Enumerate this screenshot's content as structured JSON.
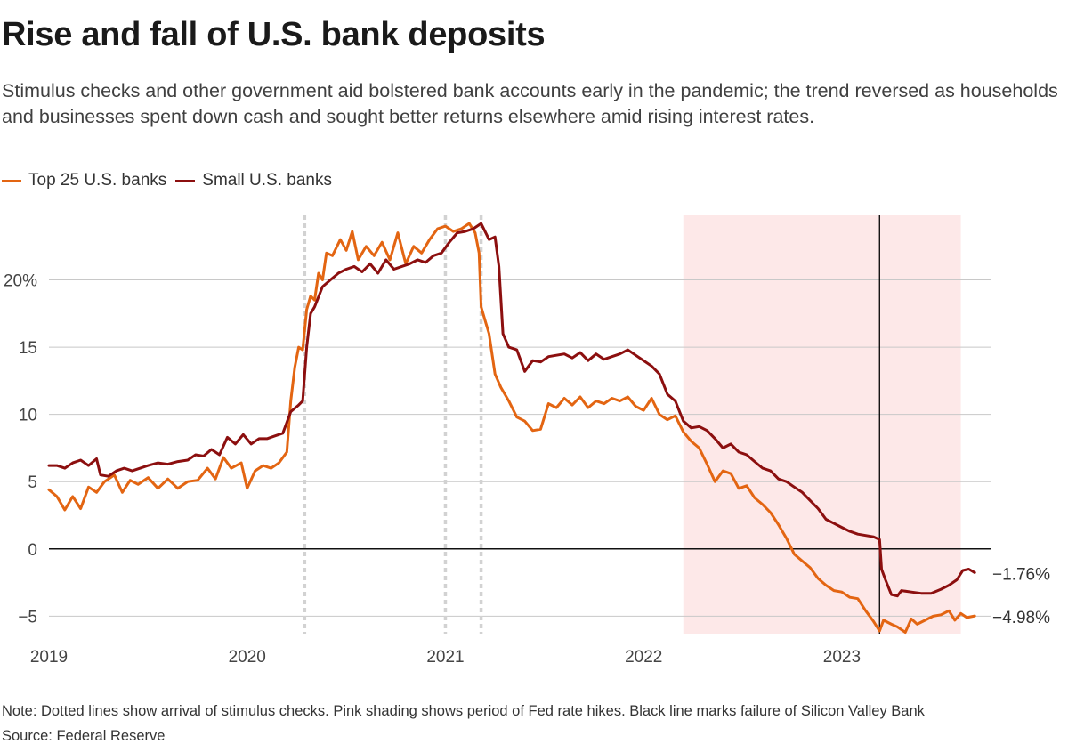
{
  "title": "Rise and fall of U.S. bank deposits",
  "subtitle": "Stimulus checks and other government aid bolstered bank accounts early in the pandemic; the trend reversed as households and businesses spent down cash and sought better returns elsewhere amid rising interest rates.",
  "note": "Note: Dotted lines show arrival of stimulus checks. Pink shading shows period of Fed rate hikes. Black line marks failure of Silicon Valley Bank",
  "source": "Source: Federal Reserve",
  "colors": {
    "top25": "#e36512",
    "small": "#8c0f0f",
    "shade": "#fde8e8",
    "grid": "#c8c8c8",
    "marker": "#000000",
    "stimulus": "#d2d2d2"
  },
  "chart_data": {
    "type": "line",
    "x_unit": "year",
    "xlim": [
      2019.0,
      2023.75
    ],
    "ylim": [
      -6.3,
      24.8
    ],
    "grid": true,
    "legend_position": "top-left",
    "x_ticks": [
      {
        "value": 2019,
        "label": "2019"
      },
      {
        "value": 2020,
        "label": "2020"
      },
      {
        "value": 2021,
        "label": "2021"
      },
      {
        "value": 2022,
        "label": "2022"
      },
      {
        "value": 2023,
        "label": "2023"
      }
    ],
    "y_ticks": [
      {
        "value": 20,
        "label": "20%"
      },
      {
        "value": 15,
        "label": "15"
      },
      {
        "value": 10,
        "label": "10"
      },
      {
        "value": 5,
        "label": "5"
      },
      {
        "value": 0,
        "label": "0"
      },
      {
        "value": -5,
        "label": "−5"
      }
    ],
    "stimulus_check_dates": [
      2020.29,
      2021.0,
      2021.18
    ],
    "rate_hike_period": [
      2022.2,
      2023.6
    ],
    "svb_failure_date": 2023.19,
    "series": [
      {
        "name": "Top 25 U.S. banks",
        "end_label": "−4.98%",
        "points": [
          [
            2019.0,
            4.4
          ],
          [
            2019.04,
            3.9
          ],
          [
            2019.08,
            2.9
          ],
          [
            2019.12,
            3.9
          ],
          [
            2019.16,
            3.0
          ],
          [
            2019.2,
            4.6
          ],
          [
            2019.24,
            4.2
          ],
          [
            2019.28,
            5.0
          ],
          [
            2019.33,
            5.5
          ],
          [
            2019.37,
            4.2
          ],
          [
            2019.41,
            5.1
          ],
          [
            2019.45,
            4.8
          ],
          [
            2019.5,
            5.3
          ],
          [
            2019.55,
            4.5
          ],
          [
            2019.6,
            5.2
          ],
          [
            2019.65,
            4.5
          ],
          [
            2019.7,
            5.0
          ],
          [
            2019.75,
            5.1
          ],
          [
            2019.8,
            6.0
          ],
          [
            2019.84,
            5.2
          ],
          [
            2019.88,
            6.8
          ],
          [
            2019.92,
            6.0
          ],
          [
            2019.97,
            6.4
          ],
          [
            2020.0,
            4.5
          ],
          [
            2020.04,
            5.8
          ],
          [
            2020.08,
            6.2
          ],
          [
            2020.12,
            6.0
          ],
          [
            2020.16,
            6.4
          ],
          [
            2020.2,
            7.2
          ],
          [
            2020.22,
            11.0
          ],
          [
            2020.24,
            13.5
          ],
          [
            2020.26,
            15.0
          ],
          [
            2020.28,
            14.8
          ],
          [
            2020.3,
            17.8
          ],
          [
            2020.32,
            18.8
          ],
          [
            2020.34,
            18.5
          ],
          [
            2020.36,
            20.5
          ],
          [
            2020.38,
            20.0
          ],
          [
            2020.4,
            22.0
          ],
          [
            2020.43,
            21.8
          ],
          [
            2020.47,
            23.0
          ],
          [
            2020.5,
            22.2
          ],
          [
            2020.53,
            23.6
          ],
          [
            2020.56,
            21.5
          ],
          [
            2020.6,
            22.5
          ],
          [
            2020.64,
            21.8
          ],
          [
            2020.68,
            22.8
          ],
          [
            2020.72,
            21.5
          ],
          [
            2020.76,
            23.5
          ],
          [
            2020.8,
            21.2
          ],
          [
            2020.84,
            22.5
          ],
          [
            2020.88,
            22.0
          ],
          [
            2020.92,
            23.0
          ],
          [
            2020.96,
            23.8
          ],
          [
            2021.0,
            24.0
          ],
          [
            2021.04,
            23.6
          ],
          [
            2021.08,
            23.8
          ],
          [
            2021.12,
            24.2
          ],
          [
            2021.15,
            23.5
          ],
          [
            2021.17,
            22.0
          ],
          [
            2021.18,
            18.0
          ],
          [
            2021.2,
            17.0
          ],
          [
            2021.22,
            16.0
          ],
          [
            2021.25,
            13.0
          ],
          [
            2021.28,
            12.0
          ],
          [
            2021.32,
            11.0
          ],
          [
            2021.36,
            9.8
          ],
          [
            2021.4,
            9.5
          ],
          [
            2021.44,
            8.8
          ],
          [
            2021.48,
            8.9
          ],
          [
            2021.52,
            10.8
          ],
          [
            2021.56,
            10.5
          ],
          [
            2021.6,
            11.2
          ],
          [
            2021.64,
            10.7
          ],
          [
            2021.68,
            11.3
          ],
          [
            2021.72,
            10.5
          ],
          [
            2021.76,
            11.0
          ],
          [
            2021.8,
            10.8
          ],
          [
            2021.84,
            11.2
          ],
          [
            2021.88,
            11.0
          ],
          [
            2021.92,
            11.3
          ],
          [
            2021.96,
            10.6
          ],
          [
            2022.0,
            10.3
          ],
          [
            2022.04,
            11.2
          ],
          [
            2022.08,
            10.0
          ],
          [
            2022.12,
            9.6
          ],
          [
            2022.16,
            9.9
          ],
          [
            2022.2,
            8.7
          ],
          [
            2022.24,
            8.0
          ],
          [
            2022.28,
            7.5
          ],
          [
            2022.32,
            6.3
          ],
          [
            2022.36,
            5.0
          ],
          [
            2022.4,
            5.8
          ],
          [
            2022.44,
            5.6
          ],
          [
            2022.48,
            4.5
          ],
          [
            2022.52,
            4.7
          ],
          [
            2022.56,
            3.8
          ],
          [
            2022.6,
            3.3
          ],
          [
            2022.64,
            2.7
          ],
          [
            2022.68,
            1.8
          ],
          [
            2022.72,
            0.8
          ],
          [
            2022.76,
            -0.4
          ],
          [
            2022.8,
            -0.9
          ],
          [
            2022.84,
            -1.4
          ],
          [
            2022.88,
            -2.2
          ],
          [
            2022.92,
            -2.7
          ],
          [
            2022.96,
            -3.1
          ],
          [
            2023.0,
            -3.2
          ],
          [
            2023.04,
            -3.6
          ],
          [
            2023.08,
            -3.7
          ],
          [
            2023.12,
            -4.6
          ],
          [
            2023.16,
            -5.4
          ],
          [
            2023.19,
            -6.1
          ],
          [
            2023.21,
            -5.3
          ],
          [
            2023.25,
            -5.6
          ],
          [
            2023.28,
            -5.8
          ],
          [
            2023.32,
            -6.2
          ],
          [
            2023.35,
            -5.2
          ],
          [
            2023.38,
            -5.6
          ],
          [
            2023.42,
            -5.3
          ],
          [
            2023.46,
            -5.0
          ],
          [
            2023.5,
            -4.9
          ],
          [
            2023.54,
            -4.6
          ],
          [
            2023.57,
            -5.3
          ],
          [
            2023.6,
            -4.8
          ],
          [
            2023.63,
            -5.1
          ],
          [
            2023.67,
            -4.98
          ]
        ]
      },
      {
        "name": "Small U.S. banks",
        "end_label": "−1.76%",
        "points": [
          [
            2019.0,
            6.2
          ],
          [
            2019.04,
            6.2
          ],
          [
            2019.08,
            6.0
          ],
          [
            2019.12,
            6.4
          ],
          [
            2019.16,
            6.6
          ],
          [
            2019.2,
            6.2
          ],
          [
            2019.24,
            6.7
          ],
          [
            2019.26,
            5.5
          ],
          [
            2019.3,
            5.4
          ],
          [
            2019.34,
            5.8
          ],
          [
            2019.38,
            6.0
          ],
          [
            2019.42,
            5.8
          ],
          [
            2019.46,
            6.0
          ],
          [
            2019.5,
            6.2
          ],
          [
            2019.55,
            6.4
          ],
          [
            2019.6,
            6.3
          ],
          [
            2019.65,
            6.5
          ],
          [
            2019.7,
            6.6
          ],
          [
            2019.74,
            7.0
          ],
          [
            2019.78,
            6.9
          ],
          [
            2019.82,
            7.4
          ],
          [
            2019.86,
            7.0
          ],
          [
            2019.9,
            8.3
          ],
          [
            2019.94,
            7.8
          ],
          [
            2019.98,
            8.5
          ],
          [
            2020.02,
            7.8
          ],
          [
            2020.06,
            8.2
          ],
          [
            2020.1,
            8.2
          ],
          [
            2020.14,
            8.4
          ],
          [
            2020.18,
            8.6
          ],
          [
            2020.22,
            10.2
          ],
          [
            2020.26,
            10.7
          ],
          [
            2020.28,
            11.0
          ],
          [
            2020.3,
            15.0
          ],
          [
            2020.32,
            17.5
          ],
          [
            2020.34,
            18.0
          ],
          [
            2020.38,
            19.5
          ],
          [
            2020.42,
            20.0
          ],
          [
            2020.46,
            20.5
          ],
          [
            2020.5,
            20.8
          ],
          [
            2020.54,
            21.0
          ],
          [
            2020.58,
            20.6
          ],
          [
            2020.62,
            21.2
          ],
          [
            2020.66,
            20.5
          ],
          [
            2020.7,
            21.5
          ],
          [
            2020.74,
            20.8
          ],
          [
            2020.78,
            21.0
          ],
          [
            2020.82,
            21.2
          ],
          [
            2020.86,
            21.5
          ],
          [
            2020.9,
            21.3
          ],
          [
            2020.94,
            21.8
          ],
          [
            2020.98,
            22.0
          ],
          [
            2021.02,
            22.8
          ],
          [
            2021.06,
            23.5
          ],
          [
            2021.1,
            23.6
          ],
          [
            2021.14,
            23.8
          ],
          [
            2021.18,
            24.2
          ],
          [
            2021.22,
            23.0
          ],
          [
            2021.25,
            23.2
          ],
          [
            2021.27,
            21.0
          ],
          [
            2021.29,
            16.0
          ],
          [
            2021.32,
            15.0
          ],
          [
            2021.36,
            14.8
          ],
          [
            2021.4,
            13.2
          ],
          [
            2021.44,
            14.0
          ],
          [
            2021.48,
            13.9
          ],
          [
            2021.52,
            14.3
          ],
          [
            2021.56,
            14.4
          ],
          [
            2021.6,
            14.5
          ],
          [
            2021.64,
            14.2
          ],
          [
            2021.68,
            14.6
          ],
          [
            2021.72,
            14.0
          ],
          [
            2021.76,
            14.5
          ],
          [
            2021.8,
            14.1
          ],
          [
            2021.84,
            14.3
          ],
          [
            2021.88,
            14.5
          ],
          [
            2021.92,
            14.8
          ],
          [
            2021.96,
            14.4
          ],
          [
            2022.0,
            14.0
          ],
          [
            2022.04,
            13.6
          ],
          [
            2022.08,
            13.0
          ],
          [
            2022.12,
            11.5
          ],
          [
            2022.16,
            11.0
          ],
          [
            2022.2,
            9.5
          ],
          [
            2022.24,
            9.0
          ],
          [
            2022.28,
            9.1
          ],
          [
            2022.32,
            8.8
          ],
          [
            2022.36,
            8.2
          ],
          [
            2022.4,
            7.5
          ],
          [
            2022.44,
            7.8
          ],
          [
            2022.48,
            7.2
          ],
          [
            2022.52,
            7.0
          ],
          [
            2022.56,
            6.5
          ],
          [
            2022.6,
            6.0
          ],
          [
            2022.64,
            5.8
          ],
          [
            2022.68,
            5.2
          ],
          [
            2022.72,
            5.0
          ],
          [
            2022.76,
            4.6
          ],
          [
            2022.8,
            4.2
          ],
          [
            2022.84,
            3.6
          ],
          [
            2022.88,
            3.0
          ],
          [
            2022.92,
            2.2
          ],
          [
            2022.96,
            1.9
          ],
          [
            2023.0,
            1.6
          ],
          [
            2023.04,
            1.3
          ],
          [
            2023.08,
            1.1
          ],
          [
            2023.12,
            1.0
          ],
          [
            2023.16,
            0.9
          ],
          [
            2023.19,
            0.7
          ],
          [
            2023.2,
            -1.5
          ],
          [
            2023.22,
            -2.3
          ],
          [
            2023.25,
            -3.4
          ],
          [
            2023.28,
            -3.5
          ],
          [
            2023.3,
            -3.1
          ],
          [
            2023.35,
            -3.2
          ],
          [
            2023.4,
            -3.3
          ],
          [
            2023.45,
            -3.3
          ],
          [
            2023.5,
            -3.0
          ],
          [
            2023.54,
            -2.7
          ],
          [
            2023.58,
            -2.3
          ],
          [
            2023.61,
            -1.6
          ],
          [
            2023.64,
            -1.5
          ],
          [
            2023.67,
            -1.76
          ]
        ]
      }
    ]
  }
}
